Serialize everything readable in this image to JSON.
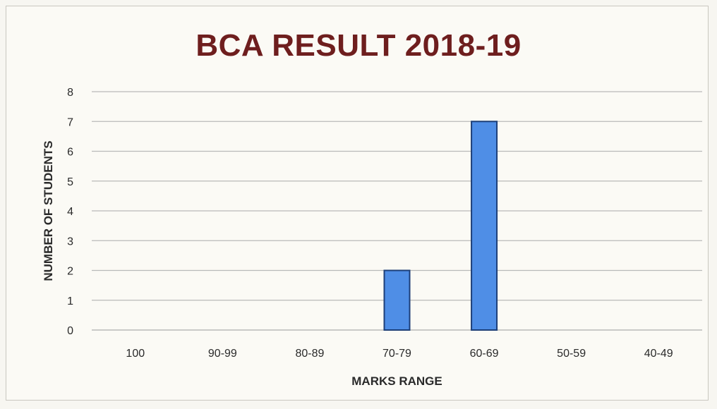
{
  "chart_data": {
    "type": "bar",
    "title": "BCA RESULT 2018-19",
    "xlabel": "MARKS RANGE",
    "ylabel": "NUMBER OF STUDENTS",
    "categories": [
      "100",
      "90-99",
      "80-89",
      "70-79",
      "60-69",
      "50-59",
      "40-49"
    ],
    "values": [
      0,
      0,
      0,
      2,
      7,
      0,
      0
    ],
    "yticks": [
      "0",
      "1",
      "2",
      "3",
      "4",
      "5",
      "6",
      "7",
      "8"
    ],
    "ylim": [
      0,
      8
    ],
    "grid": true,
    "legend": "none",
    "colors": {
      "bar_fill": "#4f8ee6",
      "bar_stroke": "#1d3f78",
      "title": "#6e1e1e",
      "grid": "#b9b9b9"
    }
  }
}
